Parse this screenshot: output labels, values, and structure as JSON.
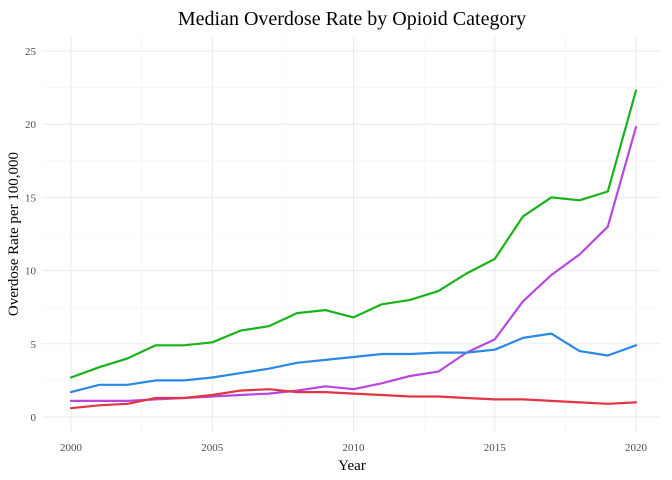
{
  "chart_data": {
    "type": "line",
    "title": "Median Overdose Rate by Opioid Category",
    "xlabel": "Year",
    "ylabel": "Overdose Rate per 100,000",
    "xlim": [
      2000,
      2020
    ],
    "ylim": [
      0,
      25
    ],
    "x_ticks": [
      2000,
      2005,
      2010,
      2015,
      2020
    ],
    "y_ticks": [
      0,
      5,
      10,
      15,
      20,
      25
    ],
    "grid": true,
    "legend": "none",
    "x": [
      2000,
      2001,
      2002,
      2003,
      2004,
      2005,
      2006,
      2007,
      2008,
      2009,
      2010,
      2011,
      2012,
      2013,
      2014,
      2015,
      2016,
      2017,
      2018,
      2019,
      2020
    ],
    "series": [
      {
        "color": "#19b319",
        "values": [
          2.7,
          3.4,
          4.0,
          4.9,
          4.9,
          5.1,
          5.9,
          6.2,
          7.1,
          7.3,
          6.8,
          7.7,
          8.0,
          8.6,
          9.8,
          10.8,
          13.7,
          15.0,
          14.8,
          15.4,
          22.3
        ]
      },
      {
        "color": "#b847e0",
        "values": [
          1.1,
          1.1,
          1.1,
          1.2,
          1.3,
          1.4,
          1.5,
          1.6,
          1.8,
          2.1,
          1.9,
          2.3,
          2.8,
          3.1,
          4.4,
          5.3,
          7.9,
          9.7,
          11.1,
          13.0,
          19.8
        ]
      },
      {
        "color": "#2a88e6",
        "values": [
          1.7,
          2.2,
          2.2,
          2.5,
          2.5,
          2.7,
          3.0,
          3.3,
          3.7,
          3.9,
          4.1,
          4.3,
          4.3,
          4.4,
          4.4,
          4.6,
          5.4,
          5.7,
          4.5,
          4.2,
          4.9
        ]
      },
      {
        "color": "#e03545",
        "values": [
          0.6,
          0.8,
          0.9,
          1.3,
          1.3,
          1.5,
          1.8,
          1.9,
          1.7,
          1.7,
          1.6,
          1.5,
          1.4,
          1.4,
          1.3,
          1.2,
          1.2,
          1.1,
          1.0,
          0.9,
          1.0
        ]
      }
    ]
  }
}
